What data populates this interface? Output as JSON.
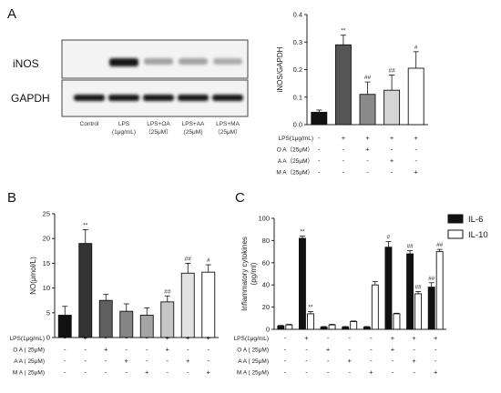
{
  "panels": {
    "a": "A",
    "b": "B",
    "c": "C"
  },
  "blot": {
    "rows": [
      "iNOS",
      "GAPDH"
    ],
    "lanes": [
      {
        "l1": "Control",
        "l2": ""
      },
      {
        "l1": "LPS",
        "l2": "(1μg/mL)"
      },
      {
        "l1": "LPS+OA",
        "l2": "（25μM）"
      },
      {
        "l1": "LPS+AA",
        "l2": "(25μM)"
      },
      {
        "l1": "LPS+MA",
        "l2": "（25μM）"
      }
    ],
    "inos_intensity": [
      0.0,
      1.0,
      0.35,
      0.35,
      0.3
    ],
    "gapdh_intensity": [
      1.0,
      1.0,
      1.0,
      1.0,
      1.0
    ]
  },
  "treatment_table": {
    "row_labels": [
      "LPS(1μg/mL)",
      "O A ( 25μM)",
      "A A ( 25μM)",
      "M A ( 25μM)"
    ],
    "row_labels_a": [
      "LPS(1μg/mL)",
      "O A（25μM）",
      "A A（25μM）",
      "M A（25μM）"
    ],
    "row_labels_c": [
      "LPS(1μg/mL)",
      "O A ( 25μM)",
      "A A ( 25μM)",
      "M A ( 25μM)"
    ],
    "groups": [
      [
        "-",
        "-",
        "-",
        "-"
      ],
      [
        "+",
        "-",
        "-",
        "-"
      ],
      [
        "-",
        "+",
        "-",
        "-"
      ],
      [
        "-",
        "-",
        "+",
        "-"
      ],
      [
        "-",
        "-",
        "-",
        "+"
      ],
      [
        "+",
        "+",
        "-",
        "-"
      ],
      [
        "+",
        "-",
        "+",
        "-"
      ],
      [
        "+",
        "-",
        "-",
        "+"
      ]
    ],
    "groups_a": [
      [
        "-",
        "-",
        "-",
        "-"
      ],
      [
        "+",
        "-",
        "-",
        "-"
      ],
      [
        "+",
        "+",
        "-",
        "-"
      ],
      [
        "+",
        "-",
        "+",
        "-"
      ],
      [
        "+",
        "-",
        "-",
        "+"
      ]
    ]
  },
  "chart_data": [
    {
      "type": "bar",
      "panel": "A",
      "ylabel": "iNOS/GAPDH",
      "ylim": [
        0,
        0.4
      ],
      "yticks": [
        "0.0",
        "0.1",
        "0.2",
        "0.3",
        "0.4"
      ],
      "values": [
        0.045,
        0.29,
        0.11,
        0.125,
        0.205
      ],
      "errors": [
        0.008,
        0.035,
        0.045,
        0.055,
        0.06
      ],
      "significance": [
        "",
        "**",
        "##",
        "##",
        "#"
      ],
      "colors": [
        "#111111",
        "#555555",
        "#8a8a8a",
        "#d4d4d4",
        "#ffffff"
      ]
    },
    {
      "type": "bar",
      "panel": "B",
      "ylabel": "NO(μmol/L)",
      "ylim": [
        0,
        25
      ],
      "yticks": [
        "0",
        "5",
        "10",
        "15",
        "20",
        "25"
      ],
      "values": [
        4.5,
        19.0,
        7.5,
        5.3,
        4.5,
        7.2,
        13.0,
        13.2
      ],
      "errors": [
        1.8,
        2.8,
        1.2,
        1.5,
        1.5,
        1.2,
        2.0,
        1.5
      ],
      "significance": [
        "",
        "**",
        "",
        "",
        "",
        "##",
        "##",
        "#"
      ],
      "colors": [
        "#111111",
        "#333333",
        "#5f5f5f",
        "#858585",
        "#a5a5a5",
        "#c6c6c6",
        "#e2e2e2",
        "#ffffff"
      ]
    },
    {
      "type": "bar",
      "panel": "C",
      "ylabel": "Inflammatory cytokines",
      "ylabel2": "(pg/ml)",
      "ylim": [
        0,
        100
      ],
      "yticks": [
        "0",
        "20",
        "40",
        "60",
        "80",
        "100"
      ],
      "series": [
        {
          "name": "IL-6",
          "color": "#111111",
          "values": [
            3,
            82,
            2,
            2,
            2,
            74,
            68,
            38
          ],
          "errors": [
            0.5,
            2.0,
            0.5,
            0.5,
            0.5,
            5.0,
            3.0,
            4.0
          ],
          "significance": [
            "",
            "**",
            "",
            "",
            "",
            "#",
            "##",
            "##"
          ]
        },
        {
          "name": "IL-10",
          "color": "#ffffff",
          "values": [
            4,
            14,
            4,
            7,
            40,
            14,
            32,
            70
          ],
          "errors": [
            0.5,
            2.0,
            0.5,
            0.5,
            3.0,
            0.5,
            2.0,
            2.0
          ],
          "significance": [
            "",
            "**",
            "",
            "",
            "",
            "",
            "##",
            "##"
          ]
        }
      ]
    }
  ]
}
